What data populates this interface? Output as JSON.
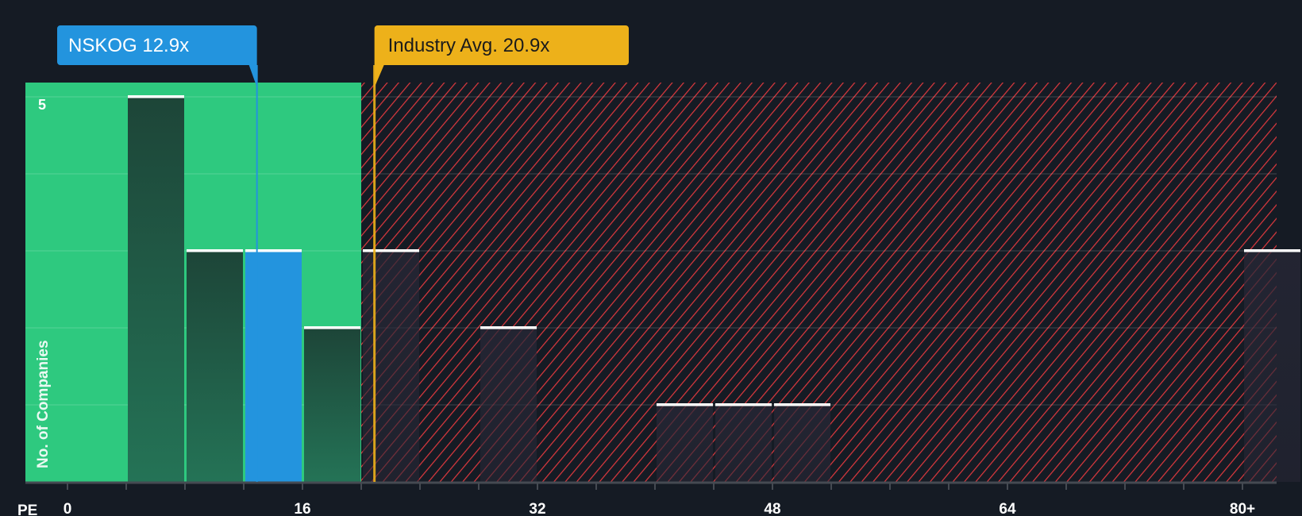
{
  "chart_data": {
    "type": "bar",
    "title": "",
    "xlabel": "PE",
    "ylabel": "No. of Companies",
    "xlim": [
      0,
      84
    ],
    "ylim": [
      0,
      5.2
    ],
    "x_tick_labels": [
      {
        "value": 0,
        "label": "0"
      },
      {
        "value": 16,
        "label": "16"
      },
      {
        "value": 32,
        "label": "32"
      },
      {
        "value": 48,
        "label": "48"
      },
      {
        "value": 64,
        "label": "64"
      },
      {
        "value": 80,
        "label": "80+"
      }
    ],
    "y_tick_labels": [
      {
        "value": 5,
        "label": "5"
      }
    ],
    "bins": [
      {
        "from": 4,
        "to": 8,
        "count": 5
      },
      {
        "from": 8,
        "to": 12,
        "count": 3
      },
      {
        "from": 12,
        "to": 16,
        "count": 3,
        "highlight": true
      },
      {
        "from": 16,
        "to": 20,
        "count": 2
      },
      {
        "from": 20,
        "to": 24,
        "count": 3
      },
      {
        "from": 28,
        "to": 32,
        "count": 2
      },
      {
        "from": 40,
        "to": 44,
        "count": 1
      },
      {
        "from": 44,
        "to": 48,
        "count": 1
      },
      {
        "from": 48,
        "to": 52,
        "count": 1
      },
      {
        "from": 80,
        "to": 84,
        "count": 3
      }
    ],
    "fair_range_max": 20,
    "company": {
      "label": "NSKOG 12.9x",
      "value": 12.9
    },
    "industry": {
      "label": "Industry Avg. 20.9x",
      "value": 20.9
    },
    "colors": {
      "background": "#151b24",
      "good_zone": "#2ec97f",
      "bar": "#1f4a3f",
      "highlight": "#2394de",
      "hatch": "#e0393e",
      "industry": "#edb11a"
    }
  }
}
